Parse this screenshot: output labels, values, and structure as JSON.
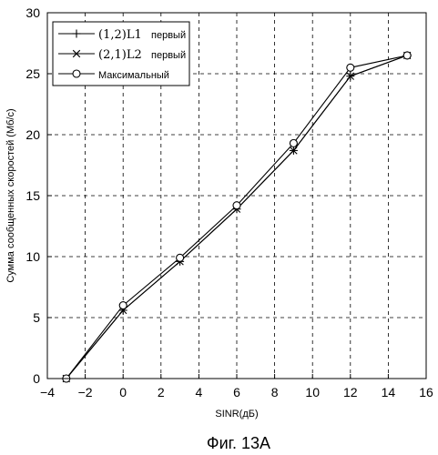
{
  "chart_data": {
    "type": "line",
    "xlabel": "SINR(дБ)",
    "ylabel": "Сумма сообщенных скоростей (Мб/с)",
    "caption": "Фиг. 13A",
    "xlim": [
      -4,
      16
    ],
    "ylim": [
      0,
      30
    ],
    "xticks": [
      -4,
      -2,
      0,
      2,
      4,
      6,
      8,
      10,
      12,
      14,
      16
    ],
    "xtick_labels": [
      "−4",
      "−2",
      "0",
      "2",
      "4",
      "6",
      "8",
      "10",
      "12",
      "14",
      "16"
    ],
    "yticks": [
      0,
      5,
      10,
      15,
      20,
      25,
      30
    ],
    "ytick_labels": [
      "0",
      "5",
      "10",
      "15",
      "20",
      "25",
      "30"
    ],
    "grid": "dashed",
    "legend_position": "top-left",
    "series": [
      {
        "name": "(1,2)L1 первый",
        "legend_main": "(1,2)L1",
        "legend_sub": "первый",
        "marker": "plus",
        "x": [
          -3,
          0,
          3,
          6,
          9,
          12,
          15
        ],
        "y": [
          0,
          5.6,
          9.6,
          13.9,
          18.7,
          24.8,
          26.5
        ]
      },
      {
        "name": "(2,1)L2 первый",
        "legend_main": "(2,1)L2",
        "legend_sub": "первый",
        "marker": "x",
        "x": [
          -3,
          0,
          3,
          6,
          9,
          12,
          15
        ],
        "y": [
          0,
          5.6,
          9.6,
          13.9,
          18.7,
          24.8,
          26.5
        ]
      },
      {
        "name": "Максимальный",
        "legend_main": "",
        "legend_sub": "Максимальный",
        "marker": "circle",
        "x": [
          -3,
          0,
          3,
          6,
          9,
          12,
          15
        ],
        "y": [
          0,
          6.0,
          9.9,
          14.2,
          19.3,
          25.5,
          26.5
        ]
      }
    ]
  }
}
